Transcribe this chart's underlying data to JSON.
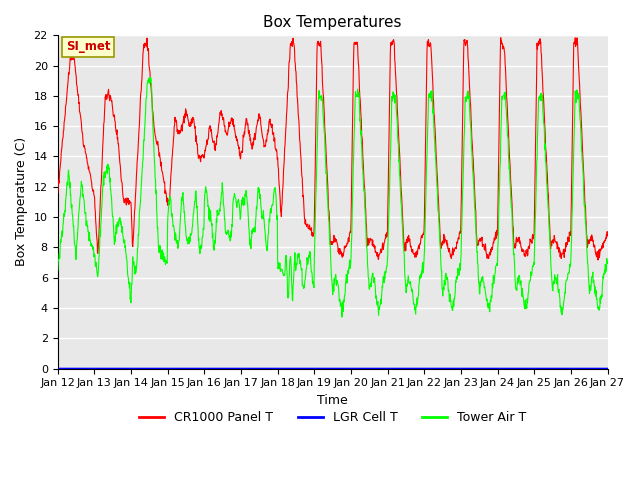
{
  "title": "Box Temperatures",
  "xlabel": "Time",
  "ylabel": "Box Temperature (C)",
  "ylim": [
    0,
    22
  ],
  "yticks": [
    0,
    2,
    4,
    6,
    8,
    10,
    12,
    14,
    16,
    18,
    20,
    22
  ],
  "x_labels": [
    "Jan 12",
    "Jan 13",
    "Jan 14",
    "Jan 15",
    "Jan 16",
    "Jan 17",
    "Jan 18",
    "Jan 19",
    "Jan 20",
    "Jan 21",
    "Jan 22",
    "Jan 23",
    "Jan 24",
    "Jan 25",
    "Jan 26",
    "Jan 27"
  ],
  "annotation_text": "SI_met",
  "annotation_color": "#cc0000",
  "annotation_bg": "#ffffcc",
  "annotation_border": "#999900",
  "series_colors": {
    "CR1000 Panel T": "#ff0000",
    "LGR Cell T": "#0000ff",
    "Tower Air T": "#00ff00"
  },
  "legend_entries": [
    "CR1000 Panel T",
    "LGR Cell T",
    "Tower Air T"
  ],
  "bg_color": "#ffffff",
  "plot_bg_color": "#e8e8e8",
  "grid_color": "#ffffff",
  "title_fontsize": 11,
  "axis_label_fontsize": 9,
  "tick_fontsize": 8
}
